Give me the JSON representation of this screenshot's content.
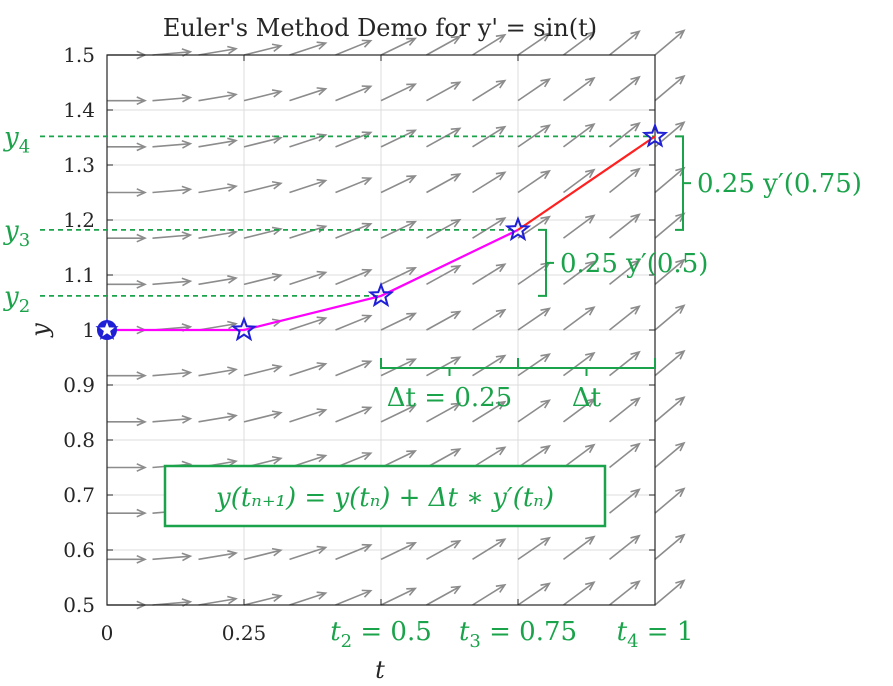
{
  "chart_data": {
    "type": "line",
    "title": "Euler's Method Demo for y' = sin(t)",
    "xlabel": "t",
    "ylabel": "y",
    "xlim": [
      0,
      1
    ],
    "ylim": [
      0.5,
      1.5
    ],
    "grid": true,
    "x_ticks": [
      "0",
      "0.25",
      "0.5",
      "0.75",
      "1"
    ],
    "y_ticks": [
      "0.5",
      "0.6",
      "0.7",
      "0.8",
      "0.9",
      "1",
      "1.1",
      "1.2",
      "1.3",
      "1.4",
      "1.5"
    ],
    "series": [
      {
        "type": "line",
        "color": "#ff00ff",
        "x": [
          0,
          0.25,
          0.5,
          0.75
        ],
        "y": [
          1.0,
          1.0,
          1.062,
          1.182
        ]
      },
      {
        "type": "line",
        "color": "#ff2020",
        "x": [
          0.75,
          1.0
        ],
        "y": [
          1.182,
          1.352
        ]
      },
      {
        "type": "scatter",
        "marker": "star",
        "color": "#1f1fd6",
        "x": [
          0,
          0.25,
          0.5,
          0.75,
          1.0
        ],
        "y": [
          1.0,
          1.0,
          1.062,
          1.182,
          1.352
        ]
      }
    ],
    "slope_field": {
      "equation": "sin(t)",
      "color": "#8c8c8c",
      "t_values": [
        0,
        0.083,
        0.167,
        0.25,
        0.333,
        0.417,
        0.5,
        0.583,
        0.667,
        0.75,
        0.833,
        0.917,
        1.0
      ],
      "y_values": [
        0.5,
        0.583,
        0.667,
        0.75,
        0.833,
        0.917,
        1.0,
        1.083,
        1.167,
        1.25,
        1.333,
        1.417,
        1.5
      ]
    },
    "annotations": {
      "color": "#1aa34a",
      "y_labels": [
        {
          "base": "y",
          "sub": "2",
          "y": 1.062
        },
        {
          "base": "y",
          "sub": "3",
          "y": 1.182
        },
        {
          "base": "y",
          "sub": "4",
          "y": 1.352
        }
      ],
      "slope_braces": [
        {
          "text": "0.25 y′(0.5)",
          "y_from": 1.062,
          "y_to": 1.182,
          "t": 0.75
        },
        {
          "text": "0.25 y′(0.75)",
          "y_from": 1.182,
          "y_to": 1.352,
          "t": 1.0
        }
      ],
      "dt_braces": [
        {
          "text": "Δt = 0.25",
          "t_from": 0.5,
          "t_to": 0.75
        },
        {
          "text": "Δt",
          "t_from": 0.75,
          "t_to": 1.0
        }
      ],
      "t_labels": [
        {
          "base": "t",
          "sub": "2",
          "value": "= 0.5",
          "t": 0.5
        },
        {
          "base": "t",
          "sub": "3",
          "value": "= 0.75",
          "t": 0.75
        },
        {
          "base": "t",
          "sub": "4",
          "value": "= 1",
          "t": 1.0
        }
      ],
      "formula": "y(tₙ₊₁) = y(tₙ) + Δt ∗ y′(tₙ)"
    }
  }
}
